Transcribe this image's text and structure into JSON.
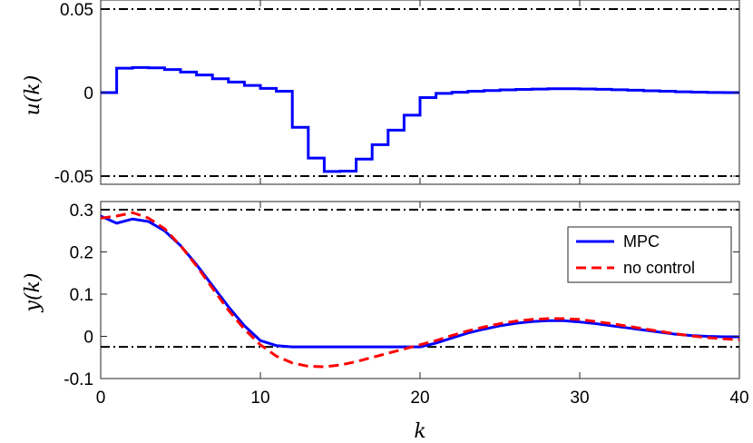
{
  "chart_data": [
    {
      "type": "line",
      "title": "",
      "xlabel": "",
      "ylabel": "u(k)",
      "xlim": [
        0,
        40
      ],
      "ylim": [
        -0.05,
        0.05
      ],
      "yticks": [
        -0.05,
        0,
        0.05
      ],
      "ytick_labels": [
        "-0.05",
        "0",
        "0.05"
      ],
      "grid": false,
      "constraints": [
        0.05,
        -0.05
      ],
      "series": [
        {
          "name": "",
          "style": "stairs",
          "color": "#0000ff",
          "x": [
            0,
            1,
            2,
            3,
            4,
            5,
            6,
            7,
            8,
            9,
            10,
            11,
            12,
            13,
            14,
            15,
            16,
            17,
            18,
            19,
            20,
            21,
            22,
            23,
            24,
            25,
            26,
            27,
            28,
            29,
            30,
            31,
            32,
            33,
            34,
            35,
            36,
            37,
            38,
            39,
            40
          ],
          "values": [
            0,
            0.0146,
            0.015,
            0.0148,
            0.0138,
            0.0123,
            0.0105,
            0.0083,
            0.0063,
            0.0043,
            0.0025,
            0.0008,
            -0.0208,
            -0.0392,
            -0.0472,
            -0.047,
            -0.0398,
            -0.0312,
            -0.0225,
            -0.0135,
            -0.003,
            -0.0005,
            0.0002,
            0.0008,
            0.0012,
            0.0016,
            0.0019,
            0.0021,
            0.0023,
            0.0023,
            0.0022,
            0.002,
            0.0017,
            0.0014,
            0.0011,
            0.0008,
            0.0005,
            0.0003,
            0.0001,
            0.0,
            0.0
          ]
        }
      ]
    },
    {
      "type": "line",
      "title": "",
      "xlabel": "k",
      "ylabel": "y(k)",
      "xlim": [
        0,
        40
      ],
      "ylim": [
        -0.1,
        0.3
      ],
      "xticks": [
        0,
        10,
        20,
        30,
        40
      ],
      "xtick_labels": [
        "0",
        "10",
        "20",
        "30",
        "40"
      ],
      "yticks": [
        -0.1,
        0,
        0.1,
        0.2,
        0.3
      ],
      "ytick_labels": [
        "-0.1",
        "0",
        "0.1",
        "0.2",
        "0.3"
      ],
      "grid": false,
      "legend_position": "right",
      "constraints": [
        0.3,
        -0.025
      ],
      "series": [
        {
          "name": "MPC",
          "color": "#0000ff",
          "dash": "solid",
          "x": [
            0,
            1,
            2,
            3,
            4,
            5,
            6,
            7,
            8,
            9,
            10,
            11,
            12,
            13,
            14,
            15,
            16,
            17,
            18,
            19,
            20,
            21,
            22,
            23,
            24,
            25,
            26,
            27,
            28,
            29,
            30,
            31,
            32,
            33,
            34,
            35,
            36,
            37,
            38,
            39,
            40
          ],
          "values": [
            0.285,
            0.268,
            0.278,
            0.272,
            0.25,
            0.215,
            0.17,
            0.12,
            0.07,
            0.025,
            -0.01,
            -0.022,
            -0.025,
            -0.025,
            -0.025,
            -0.025,
            -0.025,
            -0.025,
            -0.025,
            -0.025,
            -0.025,
            -0.016,
            -0.004,
            0.008,
            0.017,
            0.025,
            0.031,
            0.035,
            0.037,
            0.037,
            0.034,
            0.03,
            0.025,
            0.02,
            0.015,
            0.01,
            0.005,
            0.002,
            0.0,
            -0.001,
            -0.001
          ]
        },
        {
          "name": "no control",
          "color": "#ff0000",
          "dash": "dashed",
          "x": [
            0,
            1,
            2,
            3,
            4,
            5,
            6,
            7,
            8,
            9,
            10,
            11,
            12,
            13,
            14,
            15,
            16,
            17,
            18,
            19,
            20,
            21,
            22,
            23,
            24,
            25,
            26,
            27,
            28,
            29,
            30,
            31,
            32,
            33,
            34,
            35,
            36,
            37,
            38,
            39,
            40
          ],
          "values": [
            0.28,
            0.285,
            0.293,
            0.28,
            0.255,
            0.215,
            0.167,
            0.114,
            0.062,
            0.017,
            -0.02,
            -0.047,
            -0.063,
            -0.071,
            -0.072,
            -0.068,
            -0.06,
            -0.05,
            -0.04,
            -0.03,
            -0.02,
            -0.01,
            0.002,
            0.013,
            0.022,
            0.03,
            0.036,
            0.04,
            0.042,
            0.042,
            0.04,
            0.035,
            0.03,
            0.024,
            0.018,
            0.012,
            0.006,
            0.001,
            -0.003,
            -0.006,
            -0.008
          ]
        }
      ]
    }
  ]
}
